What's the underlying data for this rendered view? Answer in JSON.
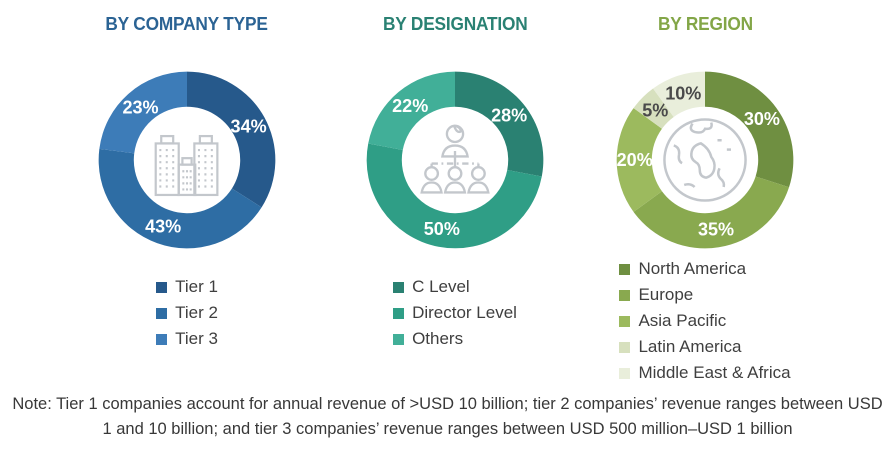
{
  "note": {
    "text": "Note: Tier 1 companies account for annual revenue of >USD 10 billion; tier 2 companies’ revenue ranges between USD 1 and 10 billion; and tier 3 companies’ revenue ranges between USD 500 million–USD 1 billion"
  },
  "palette": {
    "icon_gray": "#C3C7CC",
    "legend_text": "#3F3F3F",
    "note_text": "#383838"
  },
  "chart_data": [
    {
      "type": "pie",
      "title": "BY COMPANY TYPE",
      "title_color": "#2B6394",
      "icon": "buildings-icon",
      "donut_hole": 0.6,
      "legend_position": "bottom",
      "categories": [
        "Tier 1",
        "Tier 2",
        "Tier 3"
      ],
      "values": [
        34,
        43,
        23
      ],
      "data_labels": [
        "34%",
        "43%",
        "23%"
      ],
      "colors": [
        "#26598B",
        "#2E6DA4",
        "#3D7CB8"
      ],
      "label_colors": [
        "#FFFFFF",
        "#FFFFFF",
        "#FFFFFF"
      ]
    },
    {
      "type": "pie",
      "title": "BY DESIGNATION",
      "title_color": "#2A8173",
      "icon": "org-chart-icon",
      "donut_hole": 0.6,
      "legend_position": "bottom",
      "categories": [
        "C Level",
        "Director Level",
        "Others"
      ],
      "values": [
        28,
        50,
        22
      ],
      "data_labels": [
        "28%",
        "50%",
        "22%"
      ],
      "colors": [
        "#2A8172",
        "#2F9E86",
        "#41AF98"
      ],
      "label_colors": [
        "#FFFFFF",
        "#FFFFFF",
        "#FFFFFF"
      ]
    },
    {
      "type": "pie",
      "title": "BY REGION",
      "title_color": "#83A647",
      "icon": "globe-icon",
      "donut_hole": 0.6,
      "legend_position": "bottom",
      "categories": [
        "North America",
        "Europe",
        "Asia Pacific",
        "Latin America",
        "Middle East & Africa"
      ],
      "values": [
        30,
        35,
        20,
        5,
        10
      ],
      "data_labels": [
        "30%",
        "35%",
        "20%",
        "5%",
        "10%"
      ],
      "colors": [
        "#6F8F41",
        "#89A94F",
        "#9CBA5E",
        "#D7E0BE",
        "#E9EEDB"
      ],
      "label_colors": [
        "#FFFFFF",
        "#FFFFFF",
        "#FFFFFF",
        "#4A4A4A",
        "#4A4A4A"
      ]
    }
  ]
}
